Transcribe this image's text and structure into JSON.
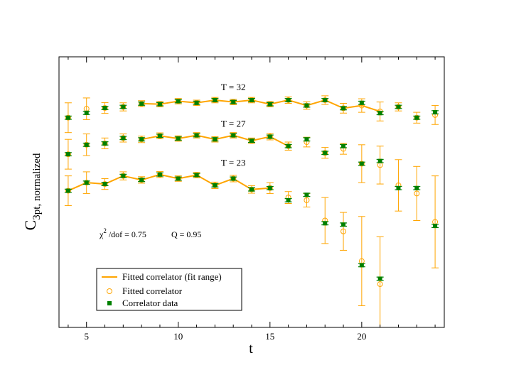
{
  "chart_data": {
    "type": "scatter",
    "xlabel": "t",
    "ylabel": "C",
    "ylabel_sub": "3pt, normalized",
    "xlim": [
      3.5,
      24.5
    ],
    "xticks": [
      5,
      10,
      15,
      20
    ],
    "ylim": [
      0,
      100
    ],
    "yticks_shown": false,
    "grid": false,
    "legend_position": "bottom-left",
    "colors": {
      "fit": "#FFA500",
      "data": "#008000"
    },
    "stats_text": {
      "chi_symbol": "χ",
      "chi_sup": "2",
      "chi_rest": " /dof = 0.75",
      "q": "Q = 0.95"
    },
    "legend": [
      {
        "label": "Fitted correlator (fit range)",
        "kind": "line"
      },
      {
        "label": "Fitted correlator",
        "kind": "circle"
      },
      {
        "label": "Correlator data",
        "kind": "square"
      }
    ],
    "series": [
      {
        "name": "T = 32",
        "fit_range": [
          8,
          21
        ],
        "points": [
          {
            "t": 4,
            "data": 77.5,
            "data_err": 0.6,
            "fit": 77.5,
            "fit_err": 5.5
          },
          {
            "t": 5,
            "data": 79.3,
            "data_err": 0.6,
            "fit": 80.8,
            "fit_err": 4.0
          },
          {
            "t": 6,
            "data": 81.1,
            "data_err": 0.6,
            "fit": 81.1,
            "fit_err": 2.0
          },
          {
            "t": 7,
            "data": 81.5,
            "data_err": 0.6,
            "fit": 81.5,
            "fit_err": 1.5
          },
          {
            "t": 8,
            "data": 82.7,
            "data_err": 0.6,
            "fit": 82.7,
            "fit_err": 1.1
          },
          {
            "t": 9,
            "data": 82.5,
            "data_err": 0.6,
            "fit": 82.5,
            "fit_err": 1.0
          },
          {
            "t": 10,
            "data": 83.6,
            "data_err": 0.6,
            "fit": 83.6,
            "fit_err": 1.0
          },
          {
            "t": 11,
            "data": 83.0,
            "data_err": 0.6,
            "fit": 83.0,
            "fit_err": 1.0
          },
          {
            "t": 12,
            "data": 84.0,
            "data_err": 0.6,
            "fit": 84.0,
            "fit_err": 1.0
          },
          {
            "t": 13,
            "data": 83.3,
            "data_err": 0.6,
            "fit": 83.3,
            "fit_err": 1.0
          },
          {
            "t": 14,
            "data": 84.0,
            "data_err": 0.6,
            "fit": 84.0,
            "fit_err": 1.0
          },
          {
            "t": 15,
            "data": 82.5,
            "data_err": 0.6,
            "fit": 82.5,
            "fit_err": 1.0
          },
          {
            "t": 16,
            "data": 84.0,
            "data_err": 0.6,
            "fit": 84.0,
            "fit_err": 1.2
          },
          {
            "t": 17,
            "data": 82.0,
            "data_err": 0.6,
            "fit": 82.0,
            "fit_err": 1.4
          },
          {
            "t": 18,
            "data": 84.0,
            "data_err": 0.6,
            "fit": 84.0,
            "fit_err": 1.6
          },
          {
            "t": 19,
            "data": 81.0,
            "data_err": 0.6,
            "fit": 81.0,
            "fit_err": 1.8
          },
          {
            "t": 20,
            "data": 83.0,
            "data_err": 0.6,
            "fit": 82.0,
            "fit_err": 2.5
          },
          {
            "t": 21,
            "data": 79.2,
            "data_err": 0.6,
            "fit": 79.8,
            "fit_err": 3.5
          },
          {
            "t": 22,
            "data": 81.5,
            "data_err": 0.6,
            "fit": 81.5,
            "fit_err": 1.5
          },
          {
            "t": 23,
            "data": 77.5,
            "data_err": 0.6,
            "fit": 77.5,
            "fit_err": 2.0
          },
          {
            "t": 24,
            "data": 79.5,
            "data_err": 0.6,
            "fit": 78.5,
            "fit_err": 3.5
          }
        ]
      },
      {
        "name": "T = 27",
        "fit_range": [
          8,
          16
        ],
        "points": [
          {
            "t": 4,
            "data": 64.0,
            "data_err": 0.6,
            "fit": 64.0,
            "fit_err": 5.5
          },
          {
            "t": 5,
            "data": 67.5,
            "data_err": 0.6,
            "fit": 67.5,
            "fit_err": 4.0
          },
          {
            "t": 6,
            "data": 68.0,
            "data_err": 0.6,
            "fit": 68.0,
            "fit_err": 2.0
          },
          {
            "t": 7,
            "data": 70.0,
            "data_err": 0.6,
            "fit": 70.0,
            "fit_err": 1.5
          },
          {
            "t": 8,
            "data": 69.5,
            "data_err": 0.6,
            "fit": 69.5,
            "fit_err": 1.2
          },
          {
            "t": 9,
            "data": 70.8,
            "data_err": 0.6,
            "fit": 70.8,
            "fit_err": 1.1
          },
          {
            "t": 10,
            "data": 69.8,
            "data_err": 0.6,
            "fit": 69.8,
            "fit_err": 1.0
          },
          {
            "t": 11,
            "data": 71.0,
            "data_err": 0.6,
            "fit": 71.0,
            "fit_err": 1.0
          },
          {
            "t": 12,
            "data": 69.5,
            "data_err": 0.6,
            "fit": 69.5,
            "fit_err": 1.0
          },
          {
            "t": 13,
            "data": 71.0,
            "data_err": 0.6,
            "fit": 71.0,
            "fit_err": 1.0
          },
          {
            "t": 14,
            "data": 69.0,
            "data_err": 0.6,
            "fit": 69.0,
            "fit_err": 1.0
          },
          {
            "t": 15,
            "data": 70.5,
            "data_err": 0.6,
            "fit": 70.5,
            "fit_err": 1.2
          },
          {
            "t": 16,
            "data": 67.0,
            "data_err": 0.6,
            "fit": 67.0,
            "fit_err": 1.5
          },
          {
            "t": 17,
            "data": 69.5,
            "data_err": 0.6,
            "fit": 68.5,
            "fit_err": 1.8
          },
          {
            "t": 18,
            "data": 64.5,
            "data_err": 0.6,
            "fit": 64.5,
            "fit_err": 2.0
          },
          {
            "t": 19,
            "data": 67.0,
            "data_err": 0.6,
            "fit": 66.0,
            "fit_err": 2.0
          },
          {
            "t": 20,
            "data": 60.5,
            "data_err": 0.6,
            "fit": 60.5,
            "fit_err": 7.0
          },
          {
            "t": 21,
            "data": 61.5,
            "data_err": 0.6,
            "fit": 60.0,
            "fit_err": 7.0
          },
          {
            "t": 22,
            "data": 51.5,
            "data_err": 0.6,
            "fit": 52.5,
            "fit_err": 9.5
          },
          {
            "t": 23,
            "data": 51.5,
            "data_err": 0.6,
            "fit": 49.5,
            "fit_err": 10.0
          },
          {
            "t": 24,
            "data": 37.5,
            "data_err": 0.6,
            "fit": 39.0,
            "fit_err": 17.0
          }
        ]
      },
      {
        "name": "T = 23",
        "fit_range": [
          4,
          15
        ],
        "points": [
          {
            "t": 4,
            "data": 50.5,
            "data_err": 0.6,
            "fit": 50.5,
            "fit_err": 5.5
          },
          {
            "t": 5,
            "data": 53.5,
            "data_err": 0.6,
            "fit": 53.5,
            "fit_err": 4.0
          },
          {
            "t": 6,
            "data": 53.0,
            "data_err": 0.6,
            "fit": 53.0,
            "fit_err": 2.0
          },
          {
            "t": 7,
            "data": 56.0,
            "data_err": 0.6,
            "fit": 56.0,
            "fit_err": 1.5
          },
          {
            "t": 8,
            "data": 54.5,
            "data_err": 0.6,
            "fit": 54.5,
            "fit_err": 1.2
          },
          {
            "t": 9,
            "data": 56.5,
            "data_err": 0.6,
            "fit": 56.5,
            "fit_err": 1.1
          },
          {
            "t": 10,
            "data": 55.0,
            "data_err": 0.6,
            "fit": 55.0,
            "fit_err": 1.0
          },
          {
            "t": 11,
            "data": 56.3,
            "data_err": 0.6,
            "fit": 56.3,
            "fit_err": 1.0
          },
          {
            "t": 12,
            "data": 52.5,
            "data_err": 0.6,
            "fit": 52.5,
            "fit_err": 1.2
          },
          {
            "t": 13,
            "data": 55.0,
            "data_err": 0.6,
            "fit": 55.0,
            "fit_err": 1.2
          },
          {
            "t": 14,
            "data": 51.0,
            "data_err": 0.6,
            "fit": 51.0,
            "fit_err": 1.4
          },
          {
            "t": 15,
            "data": 51.5,
            "data_err": 0.6,
            "fit": 51.5,
            "fit_err": 2.0
          },
          {
            "t": 16,
            "data": 47.0,
            "data_err": 0.6,
            "fit": 48.0,
            "fit_err": 2.2
          },
          {
            "t": 17,
            "data": 49.0,
            "data_err": 0.6,
            "fit": 47.0,
            "fit_err": 2.5
          },
          {
            "t": 18,
            "data": 38.5,
            "data_err": 0.6,
            "fit": 39.5,
            "fit_err": 8.5
          },
          {
            "t": 19,
            "data": 38.0,
            "data_err": 0.6,
            "fit": 35.5,
            "fit_err": 7.0
          },
          {
            "t": 20,
            "data": 23.0,
            "data_err": 0.6,
            "fit": 24.5,
            "fit_err": 16.5
          },
          {
            "t": 21,
            "data": 18.0,
            "data_err": 0.6,
            "fit": 16.0,
            "fit_err": 17.5
          }
        ]
      }
    ]
  }
}
